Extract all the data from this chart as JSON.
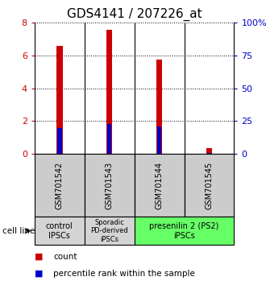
{
  "title": "GDS4141 / 207226_at",
  "samples": [
    "GSM701542",
    "GSM701543",
    "GSM701544",
    "GSM701545"
  ],
  "count_values": [
    6.6,
    7.55,
    5.75,
    0.35
  ],
  "percentile_values": [
    1.6,
    1.85,
    1.7,
    0.05
  ],
  "ylim": [
    0,
    8
  ],
  "yticks": [
    0,
    2,
    4,
    6,
    8
  ],
  "y2ticks": [
    0,
    25,
    50,
    75,
    100
  ],
  "y2labels": [
    "0",
    "25",
    "50",
    "75",
    "100%"
  ],
  "groups": [
    {
      "label": "control\nIPSCs",
      "start": 0,
      "end": 1,
      "color": "#d4d4d4"
    },
    {
      "label": "Sporadic\nPD-derived\niPSCs",
      "start": 1,
      "end": 2,
      "color": "#d4d4d4"
    },
    {
      "label": "presenilin 2 (PS2)\niPSCs",
      "start": 2,
      "end": 4,
      "color": "#66ff66"
    }
  ],
  "bar_color": "#cc0000",
  "percentile_color": "#0000cc",
  "bar_width": 0.12,
  "sample_box_color": "#cccccc",
  "ylabel_left_color": "#cc0000",
  "ylabel_right_color": "#0000cc",
  "title_fontsize": 11,
  "tick_fontsize": 8,
  "label_fontsize": 7,
  "legend_fontsize": 7.5
}
